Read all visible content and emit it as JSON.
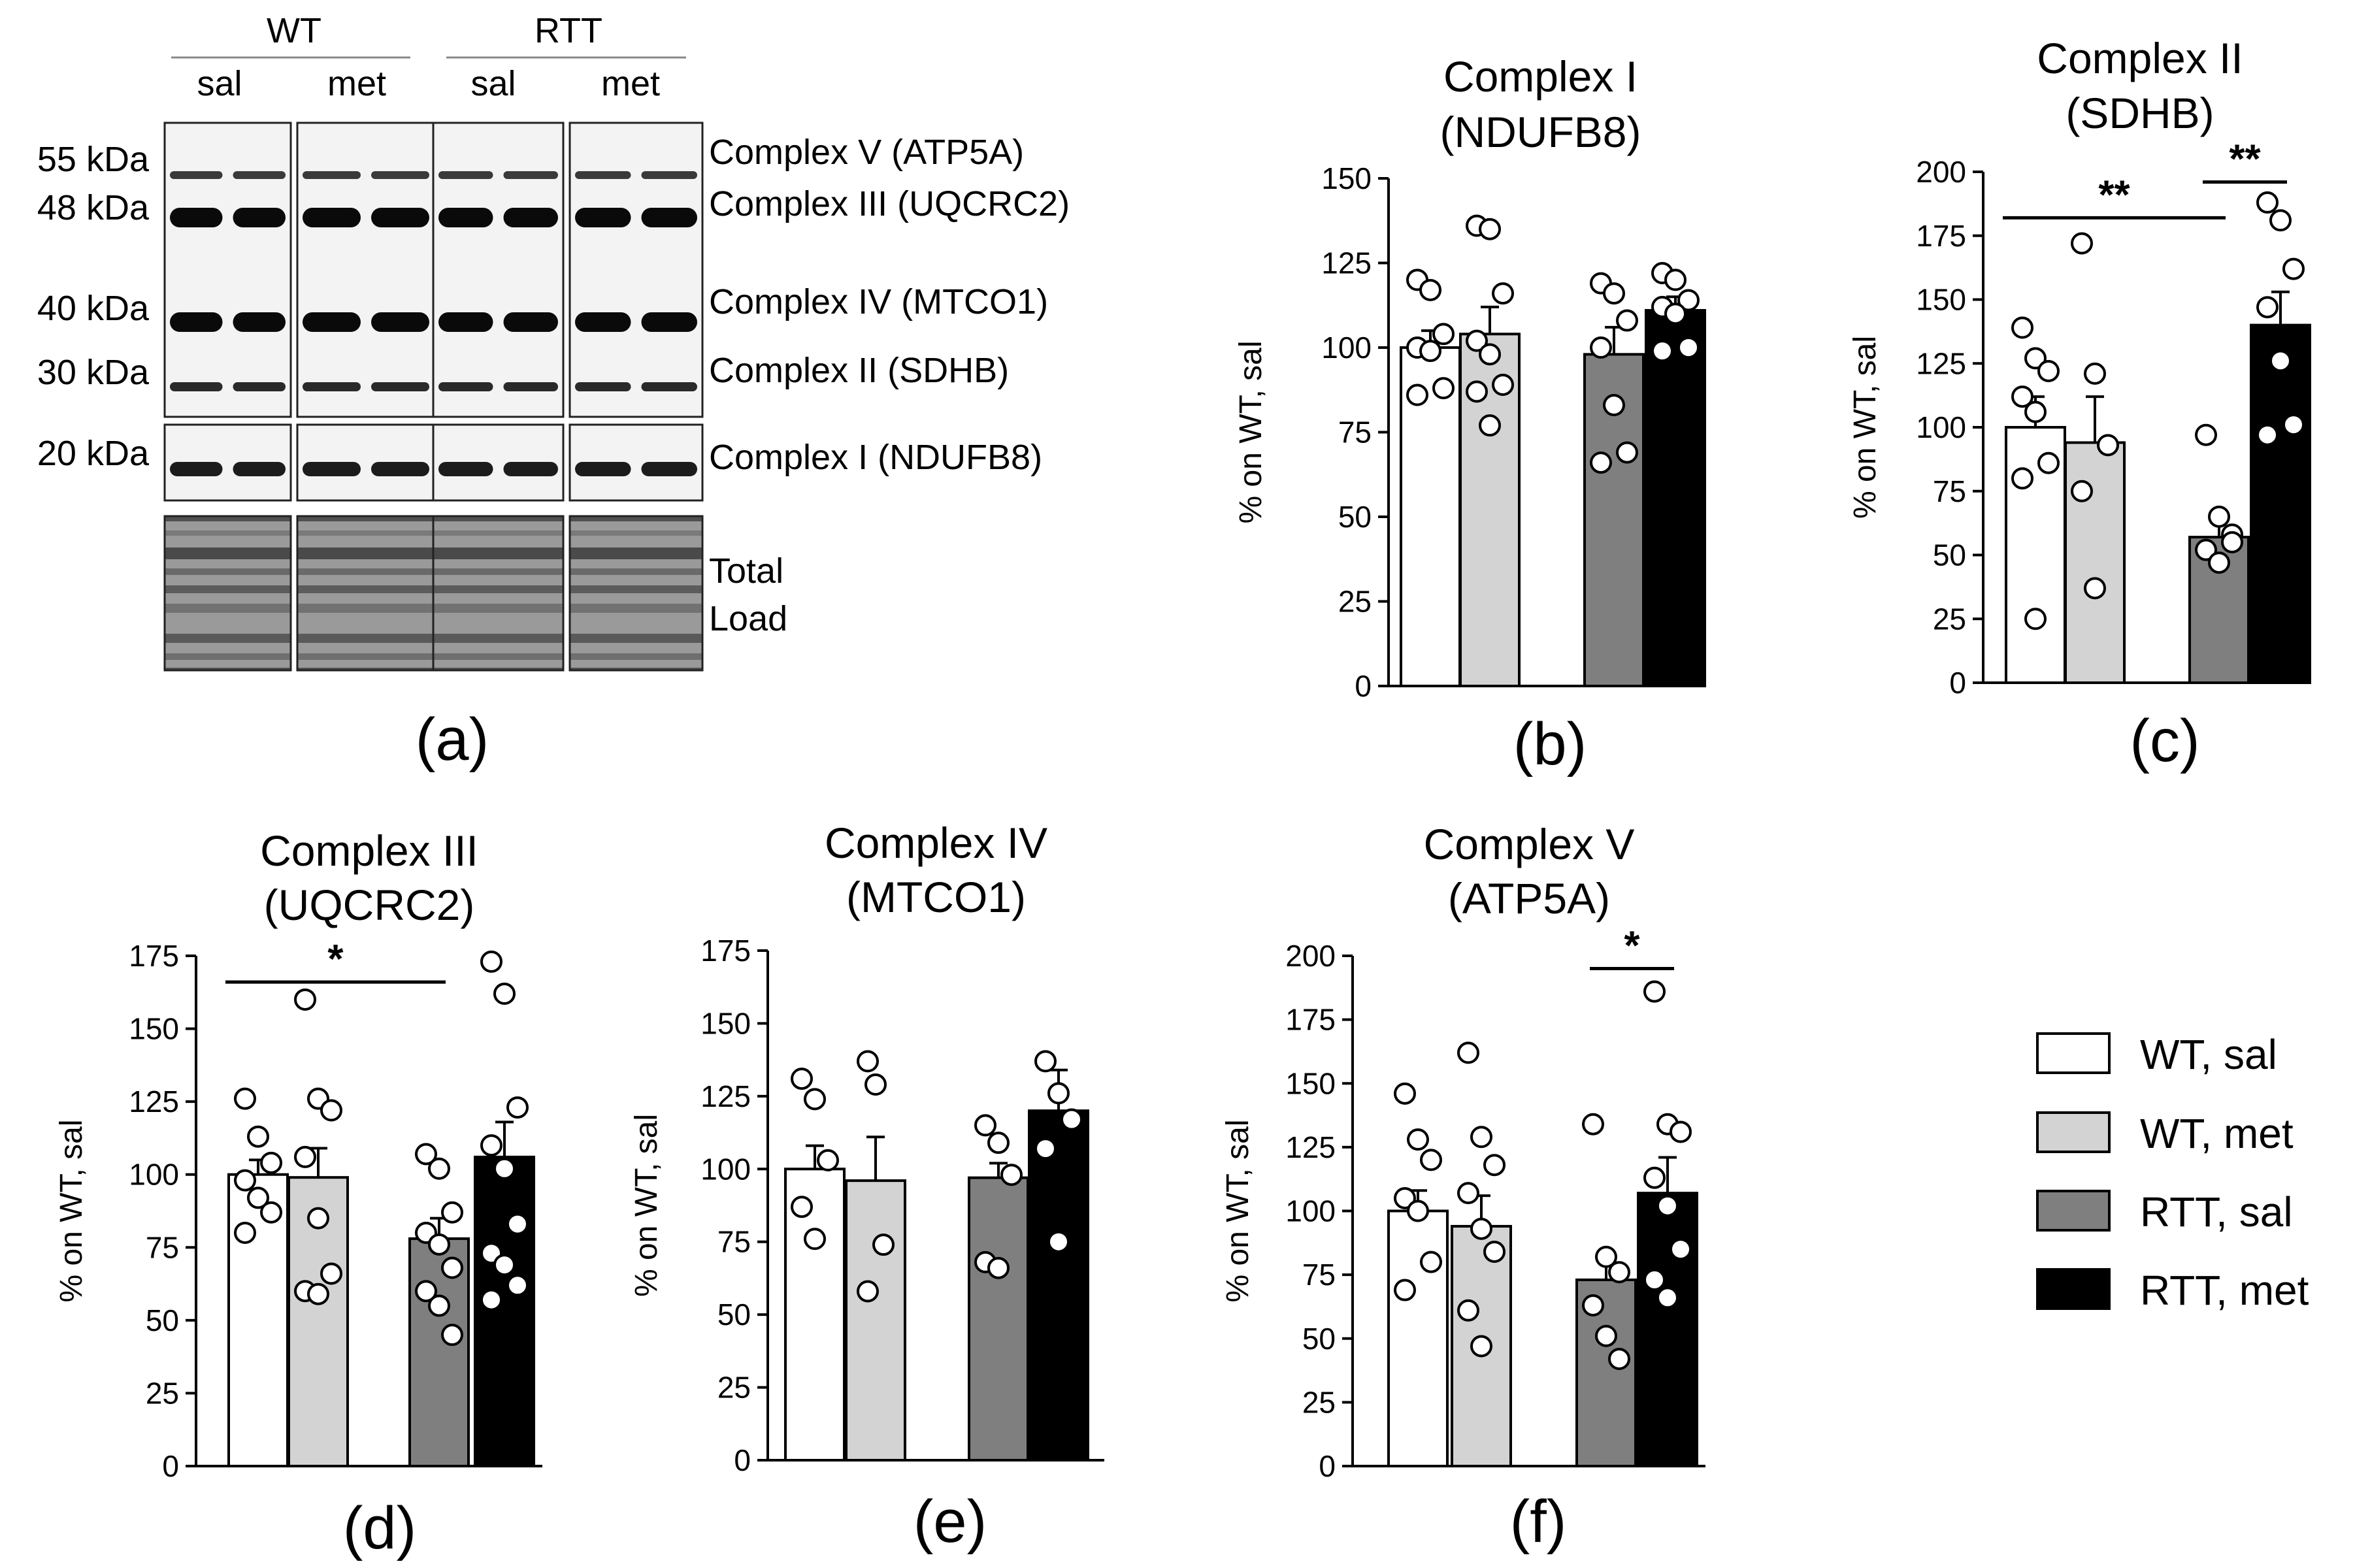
{
  "figure": {
    "legend": [
      {
        "label": "WT, sal",
        "color": "#ffffff"
      },
      {
        "label": "WT, met",
        "color": "#d3d3d3"
      },
      {
        "label": "RTT, sal",
        "color": "#7f7f7f"
      },
      {
        "label": "RTT, met",
        "color": "#000000"
      }
    ]
  },
  "blot": {
    "panel_label": "(a)",
    "groups": [
      "WT",
      "RTT"
    ],
    "treatments": [
      "sal",
      "met",
      "sal",
      "met"
    ],
    "kda": [
      "55 kDa",
      "48 kDa",
      "40 kDa",
      "30 kDa",
      "20 kDa"
    ],
    "bands": [
      "Complex V (ATP5A)",
      "Complex III (UQCRC2)",
      "Complex IV (MTCO1)",
      "Complex II (SDHB)",
      "Complex I (NDUFB8)"
    ],
    "load_label": [
      "Total",
      "Load"
    ]
  },
  "chart_data": [
    {
      "type": "bar",
      "panel": "(b)",
      "title": [
        "Complex I",
        "(NDUFB8)"
      ],
      "ylabel": "% on WT, sal",
      "ylim": [
        0,
        150
      ],
      "yticks": [
        0,
        25,
        50,
        75,
        100,
        125,
        150
      ],
      "categories": [
        "WT, sal",
        "WT, met",
        "RTT, sal",
        "RTT, met"
      ],
      "values": [
        100,
        104,
        98,
        111
      ],
      "errors": [
        5,
        8,
        8,
        4
      ],
      "points": [
        [
          120,
          117,
          104,
          100,
          99,
          88,
          86
        ],
        [
          136,
          135,
          116,
          102,
          98,
          89,
          87,
          77
        ],
        [
          119,
          116,
          108,
          100,
          83,
          69,
          66
        ],
        [
          122,
          120,
          114,
          112,
          110,
          100,
          99
        ]
      ],
      "significance": []
    },
    {
      "type": "bar",
      "panel": "(c)",
      "title": [
        "Complex II",
        "(SDHB)"
      ],
      "ylabel": "% on WT, sal",
      "ylim": [
        0,
        200
      ],
      "yticks": [
        0,
        25,
        50,
        75,
        100,
        125,
        150,
        175,
        200
      ],
      "categories": [
        "WT, sal",
        "WT, met",
        "RTT, sal",
        "RTT, met"
      ],
      "values": [
        100,
        94,
        57,
        140
      ],
      "errors": [
        12,
        18,
        6,
        13
      ],
      "points": [
        [
          139,
          127,
          122,
          112,
          106,
          86,
          80,
          25
        ],
        [
          172,
          121,
          93,
          75,
          37
        ],
        [
          97,
          65,
          58,
          52,
          47,
          55
        ],
        [
          188,
          181,
          162,
          147,
          126,
          101,
          97
        ]
      ],
      "significance": [
        {
          "from": 0,
          "to": 2,
          "label": "**",
          "y": 182
        },
        {
          "from": 2,
          "to": 3,
          "label": "**",
          "y": 196
        }
      ]
    },
    {
      "type": "bar",
      "panel": "(d)",
      "title": [
        "Complex III",
        "(UQCRC2)"
      ],
      "ylabel": "% on WT, sal",
      "ylim": [
        0,
        175
      ],
      "yticks": [
        0,
        25,
        50,
        75,
        100,
        125,
        150,
        175
      ],
      "categories": [
        "WT, sal",
        "WT, met",
        "RTT, sal",
        "RTT, met"
      ],
      "values": [
        100,
        99,
        78,
        106
      ],
      "errors": [
        5,
        10,
        7,
        12
      ],
      "points": [
        [
          126,
          113,
          104,
          98,
          92,
          87,
          80
        ],
        [
          160,
          126,
          122,
          106,
          85,
          66,
          60,
          59
        ],
        [
          107,
          102,
          87,
          80,
          76,
          68,
          60,
          55,
          45
        ],
        [
          173,
          162,
          123,
          110,
          102,
          83,
          73,
          69,
          62,
          57
        ]
      ],
      "significance": [
        {
          "from": 0,
          "to": 2,
          "label": "*",
          "y": 166
        }
      ]
    },
    {
      "type": "bar",
      "panel": "(e)",
      "title": [
        "Complex IV",
        "(MTCO1)"
      ],
      "ylabel": "% on WT, sal",
      "ylim": [
        0,
        175
      ],
      "yticks": [
        0,
        25,
        50,
        75,
        100,
        125,
        150,
        175
      ],
      "categories": [
        "WT, sal",
        "WT, met",
        "RTT, sal",
        "RTT, met"
      ],
      "values": [
        100,
        96,
        97,
        120
      ],
      "errors": [
        8,
        15,
        5,
        14
      ],
      "points": [
        [
          131,
          124,
          103,
          87,
          76
        ],
        [
          137,
          129,
          74,
          58
        ],
        [
          115,
          109,
          98,
          68,
          66
        ],
        [
          137,
          126,
          117,
          107,
          75
        ]
      ],
      "significance": []
    },
    {
      "type": "bar",
      "panel": "(f)",
      "title": [
        "Complex V",
        "(ATP5A)"
      ],
      "ylabel": "% on WT, sal",
      "ylim": [
        0,
        200
      ],
      "yticks": [
        0,
        25,
        50,
        75,
        100,
        125,
        150,
        175,
        200
      ],
      "categories": [
        "WT, sal",
        "WT, met",
        "RTT, sal",
        "RTT, met"
      ],
      "values": [
        100,
        94,
        73,
        107
      ],
      "errors": [
        8,
        12,
        9,
        14
      ],
      "points": [
        [
          146,
          128,
          120,
          105,
          100,
          80,
          69
        ],
        [
          162,
          129,
          118,
          107,
          93,
          84,
          61,
          47
        ],
        [
          134,
          82,
          76,
          63,
          51,
          42
        ],
        [
          186,
          134,
          131,
          113,
          102,
          85,
          73,
          66
        ]
      ],
      "significance": [
        {
          "from": 2,
          "to": 3,
          "label": "*",
          "y": 195
        }
      ]
    }
  ]
}
